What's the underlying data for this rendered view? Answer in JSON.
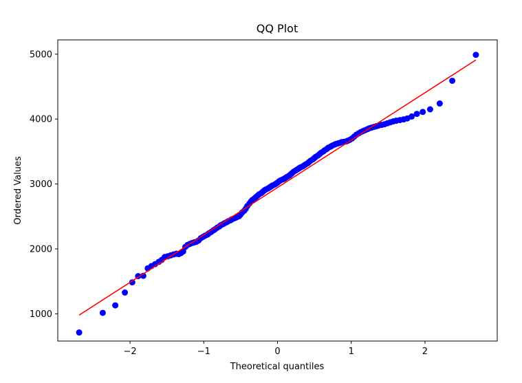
{
  "chart_data": {
    "type": "scatter",
    "title": "QQ Plot",
    "xlabel": "Theoretical quantiles",
    "ylabel": "Ordered Values",
    "xlim": [
      -2.98,
      2.98
    ],
    "ylim": [
      580,
      5220
    ],
    "x_ticks": [
      -2,
      -1,
      0,
      1,
      2
    ],
    "x_tick_labels": [
      "−2",
      "−1",
      "0",
      "1",
      "2"
    ],
    "y_ticks": [
      1000,
      2000,
      3000,
      4000,
      5000
    ],
    "y_tick_labels": [
      "1000",
      "2000",
      "3000",
      "4000",
      "5000"
    ],
    "grid": false,
    "legend": "none",
    "fit_line": {
      "x": [
        -2.69,
        2.69
      ],
      "y": [
        980,
        4910
      ],
      "color": "#ff0000"
    },
    "marker_color": "#0000ff",
    "series": [
      {
        "points": [
          [
            -2.69,
            712
          ],
          [
            -2.37,
            1015
          ],
          [
            -2.2,
            1130
          ],
          [
            -2.07,
            1328
          ],
          [
            -1.97,
            1485
          ],
          [
            -1.89,
            1580
          ],
          [
            -1.82,
            1585
          ],
          [
            -1.76,
            1700
          ],
          [
            -1.71,
            1735
          ],
          [
            -1.66,
            1765
          ],
          [
            -1.61,
            1800
          ],
          [
            -1.57,
            1830
          ],
          [
            -1.53,
            1875
          ],
          [
            -1.49,
            1885
          ],
          [
            -1.45,
            1900
          ],
          [
            -1.41,
            1915
          ],
          [
            -1.37,
            1925
          ],
          [
            -1.34,
            1920
          ],
          [
            -1.31,
            1935
          ],
          [
            -1.28,
            1960
          ],
          [
            -1.25,
            2030
          ],
          [
            -1.22,
            2060
          ],
          [
            -1.19,
            2075
          ],
          [
            -1.16,
            2090
          ],
          [
            -1.13,
            2100
          ],
          [
            -1.1,
            2110
          ],
          [
            -1.07,
            2130
          ],
          [
            -1.04,
            2165
          ],
          [
            -1.01,
            2185
          ],
          [
            -0.98,
            2205
          ],
          [
            -0.95,
            2220
          ],
          [
            -0.93,
            2240
          ],
          [
            -0.9,
            2260
          ],
          [
            -0.87,
            2285
          ],
          [
            -0.85,
            2300
          ],
          [
            -0.82,
            2325
          ],
          [
            -0.79,
            2345
          ],
          [
            -0.77,
            2365
          ],
          [
            -0.74,
            2380
          ],
          [
            -0.72,
            2395
          ],
          [
            -0.69,
            2410
          ],
          [
            -0.67,
            2425
          ],
          [
            -0.64,
            2440
          ],
          [
            -0.62,
            2455
          ],
          [
            -0.59,
            2470
          ],
          [
            -0.57,
            2480
          ],
          [
            -0.55,
            2490
          ],
          [
            -0.52,
            2505
          ],
          [
            -0.5,
            2530
          ],
          [
            -0.48,
            2560
          ],
          [
            -0.45,
            2590
          ],
          [
            -0.43,
            2620
          ],
          [
            -0.41,
            2660
          ],
          [
            -0.38,
            2700
          ],
          [
            -0.36,
            2730
          ],
          [
            -0.34,
            2755
          ],
          [
            -0.31,
            2780
          ],
          [
            -0.29,
            2800
          ],
          [
            -0.27,
            2820
          ],
          [
            -0.25,
            2840
          ],
          [
            -0.22,
            2860
          ],
          [
            -0.2,
            2880
          ],
          [
            -0.18,
            2900
          ],
          [
            -0.16,
            2915
          ],
          [
            -0.13,
            2930
          ],
          [
            -0.11,
            2945
          ],
          [
            -0.09,
            2960
          ],
          [
            -0.07,
            2975
          ],
          [
            -0.04,
            2990
          ],
          [
            -0.02,
            3005
          ],
          [
            0.0,
            3020
          ],
          [
            0.02,
            3040
          ],
          [
            0.04,
            3055
          ],
          [
            0.07,
            3070
          ],
          [
            0.09,
            3080
          ],
          [
            0.11,
            3095
          ],
          [
            0.13,
            3110
          ],
          [
            0.16,
            3130
          ],
          [
            0.18,
            3150
          ],
          [
            0.2,
            3170
          ],
          [
            0.22,
            3190
          ],
          [
            0.25,
            3210
          ],
          [
            0.27,
            3225
          ],
          [
            0.29,
            3240
          ],
          [
            0.31,
            3255
          ],
          [
            0.34,
            3270
          ],
          [
            0.36,
            3285
          ],
          [
            0.38,
            3300
          ],
          [
            0.41,
            3320
          ],
          [
            0.43,
            3340
          ],
          [
            0.45,
            3360
          ],
          [
            0.48,
            3380
          ],
          [
            0.5,
            3400
          ],
          [
            0.52,
            3420
          ],
          [
            0.55,
            3440
          ],
          [
            0.57,
            3460
          ],
          [
            0.59,
            3480
          ],
          [
            0.62,
            3500
          ],
          [
            0.64,
            3520
          ],
          [
            0.67,
            3540
          ],
          [
            0.69,
            3560
          ],
          [
            0.72,
            3575
          ],
          [
            0.74,
            3590
          ],
          [
            0.77,
            3605
          ],
          [
            0.79,
            3615
          ],
          [
            0.82,
            3625
          ],
          [
            0.85,
            3635
          ],
          [
            0.87,
            3645
          ],
          [
            0.9,
            3650
          ],
          [
            0.93,
            3655
          ],
          [
            0.95,
            3665
          ],
          [
            0.98,
            3680
          ],
          [
            1.01,
            3700
          ],
          [
            1.04,
            3730
          ],
          [
            1.07,
            3760
          ],
          [
            1.1,
            3780
          ],
          [
            1.13,
            3800
          ],
          [
            1.16,
            3815
          ],
          [
            1.19,
            3830
          ],
          [
            1.22,
            3845
          ],
          [
            1.25,
            3860
          ],
          [
            1.28,
            3870
          ],
          [
            1.31,
            3880
          ],
          [
            1.34,
            3890
          ],
          [
            1.37,
            3900
          ],
          [
            1.41,
            3910
          ],
          [
            1.45,
            3920
          ],
          [
            1.49,
            3935
          ],
          [
            1.53,
            3950
          ],
          [
            1.57,
            3965
          ],
          [
            1.61,
            3975
          ],
          [
            1.66,
            3985
          ],
          [
            1.71,
            3995
          ],
          [
            1.76,
            4010
          ],
          [
            1.82,
            4040
          ],
          [
            1.89,
            4080
          ],
          [
            1.97,
            4110
          ],
          [
            2.07,
            4150
          ],
          [
            2.2,
            4240
          ],
          [
            2.37,
            4590
          ],
          [
            2.69,
            4990
          ]
        ]
      }
    ]
  }
}
